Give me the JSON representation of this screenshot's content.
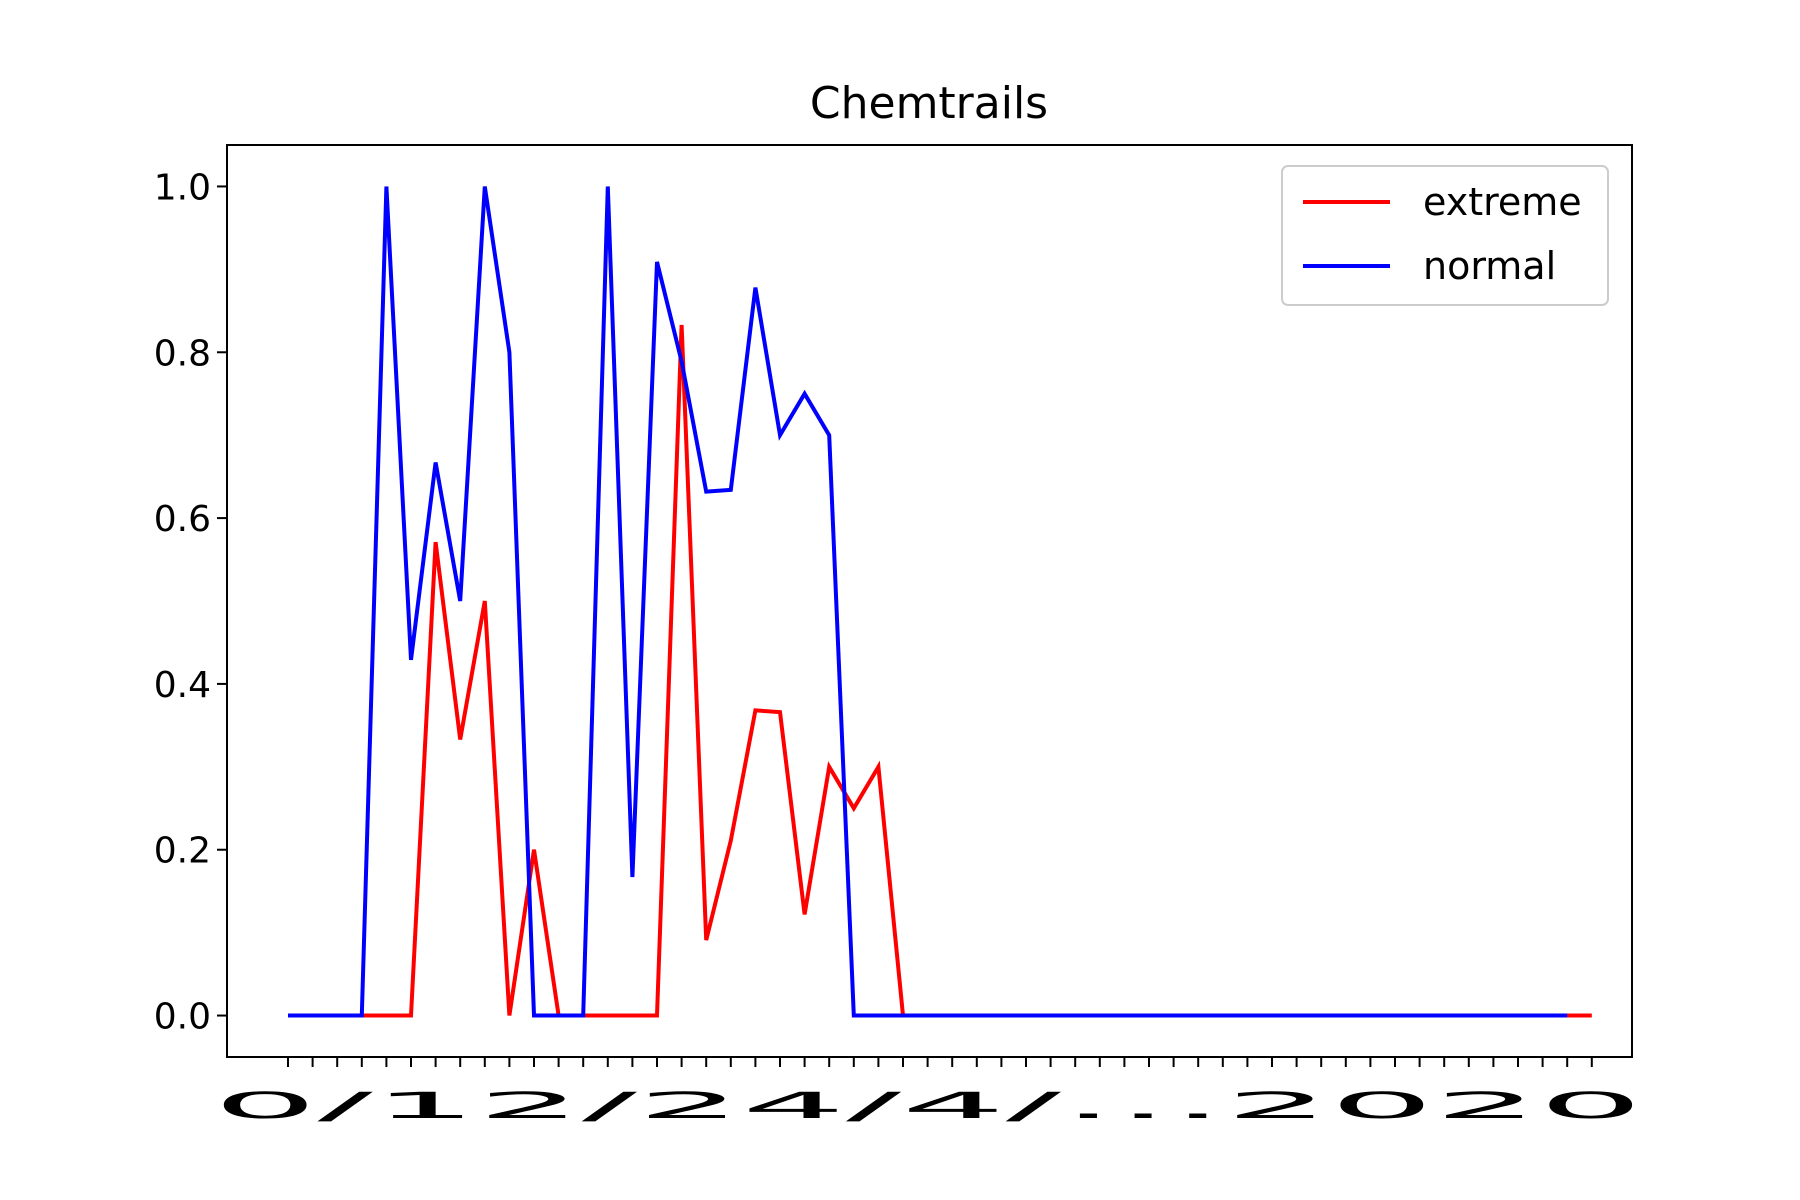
{
  "chart_data": {
    "type": "line",
    "title": "Chemtrails",
    "xlabel": "",
    "ylabel": "",
    "ylim": [
      -0.05,
      1.05
    ],
    "yticks": [
      "0.0",
      "0.2",
      "0.4",
      "0.6",
      "0.8",
      "1.0"
    ],
    "x_ticklabels_rendered": "0/12/2/4/...2020 (overlapping, illegible date labels)",
    "legend_position": "top-right",
    "grid": false,
    "series": [
      {
        "name": "extreme",
        "color": "#ff0000",
        "values": [
          0,
          0,
          0,
          0,
          0,
          0,
          0.571,
          0.333,
          0.5,
          0,
          0.2,
          0,
          0,
          0,
          0,
          0,
          0.833,
          0.091,
          0.211,
          0.368,
          0.366,
          0.122,
          0.3,
          0.25,
          0.3,
          0,
          0,
          0,
          0,
          0,
          0,
          0,
          0,
          0,
          0,
          0,
          0,
          0,
          0,
          0,
          0,
          0,
          0,
          0,
          0,
          0,
          0,
          0,
          0,
          0,
          0,
          0,
          0,
          0
        ]
      },
      {
        "name": "normal",
        "color": "#0000ff",
        "values": [
          0,
          0,
          0,
          0,
          1.0,
          0.429,
          0.667,
          0.5,
          1.0,
          0.8,
          0,
          0,
          0,
          1.0,
          0.167,
          0.909,
          0.789,
          0.632,
          0.634,
          0.878,
          0.7,
          0.75,
          0.7,
          0,
          0,
          0,
          0,
          0,
          0,
          0,
          0,
          0,
          0,
          0,
          0,
          0,
          0,
          0,
          0,
          0,
          0,
          0,
          0,
          0,
          0,
          0,
          0,
          0,
          0,
          0,
          0,
          0,
          0
        ]
      }
    ]
  }
}
